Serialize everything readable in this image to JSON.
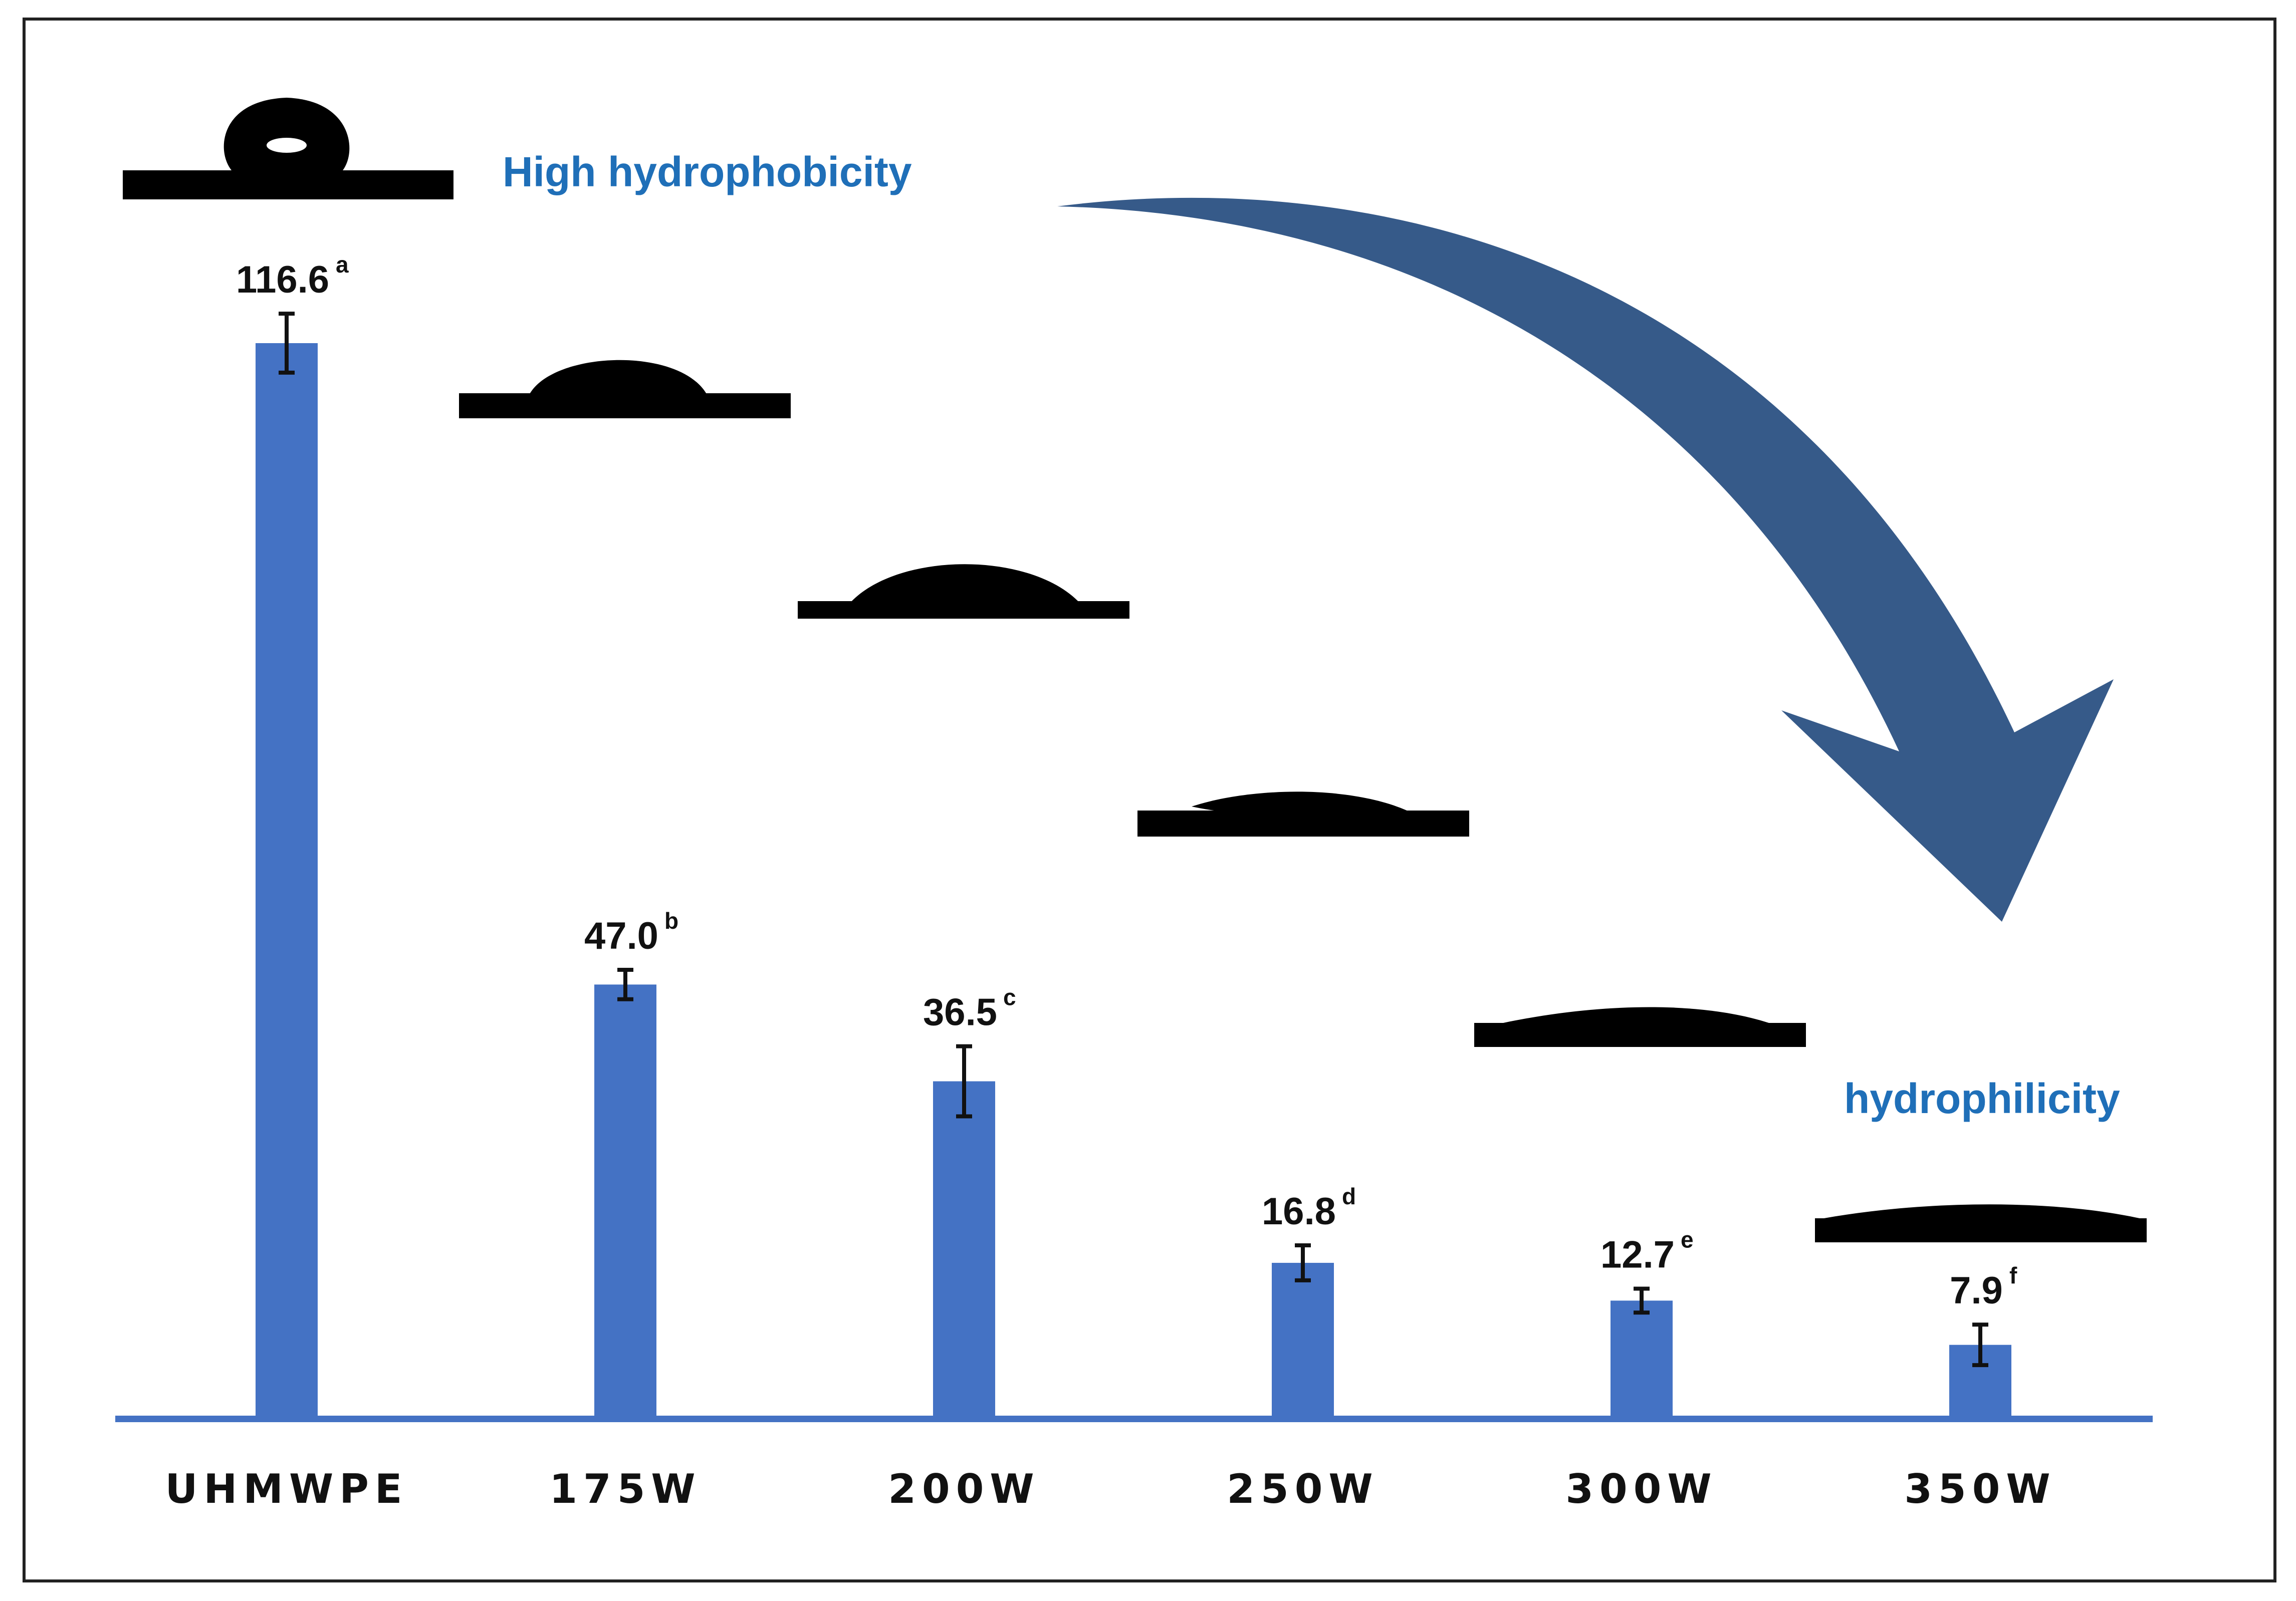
{
  "chart_data": {
    "type": "bar",
    "categories": [
      "UHMWPE",
      "175W",
      "200W",
      "250W",
      "300W",
      "350W"
    ],
    "values": [
      116.6,
      47.0,
      36.5,
      16.8,
      12.7,
      7.9
    ],
    "value_labels": [
      "116.6",
      "47.0",
      "36.5",
      "16.8",
      "12.7",
      "7.9"
    ],
    "significance_letters": [
      "a",
      "b",
      "c",
      "d",
      "e",
      "f"
    ],
    "error_bars": [
      3.2,
      1.6,
      3.8,
      1.9,
      1.3,
      2.2
    ],
    "ylim": [
      0,
      125
    ],
    "title": "",
    "xlabel": "",
    "ylabel": "",
    "grid": false,
    "annotations": {
      "top": "High hydrophobicity",
      "bottom": "hydrophilicity"
    },
    "colors": {
      "bar": "#4472C4",
      "axis": "#4472C4",
      "annotation_text": "#1F6FB8",
      "arrow": "#365A89",
      "droplet": "#000000"
    }
  }
}
